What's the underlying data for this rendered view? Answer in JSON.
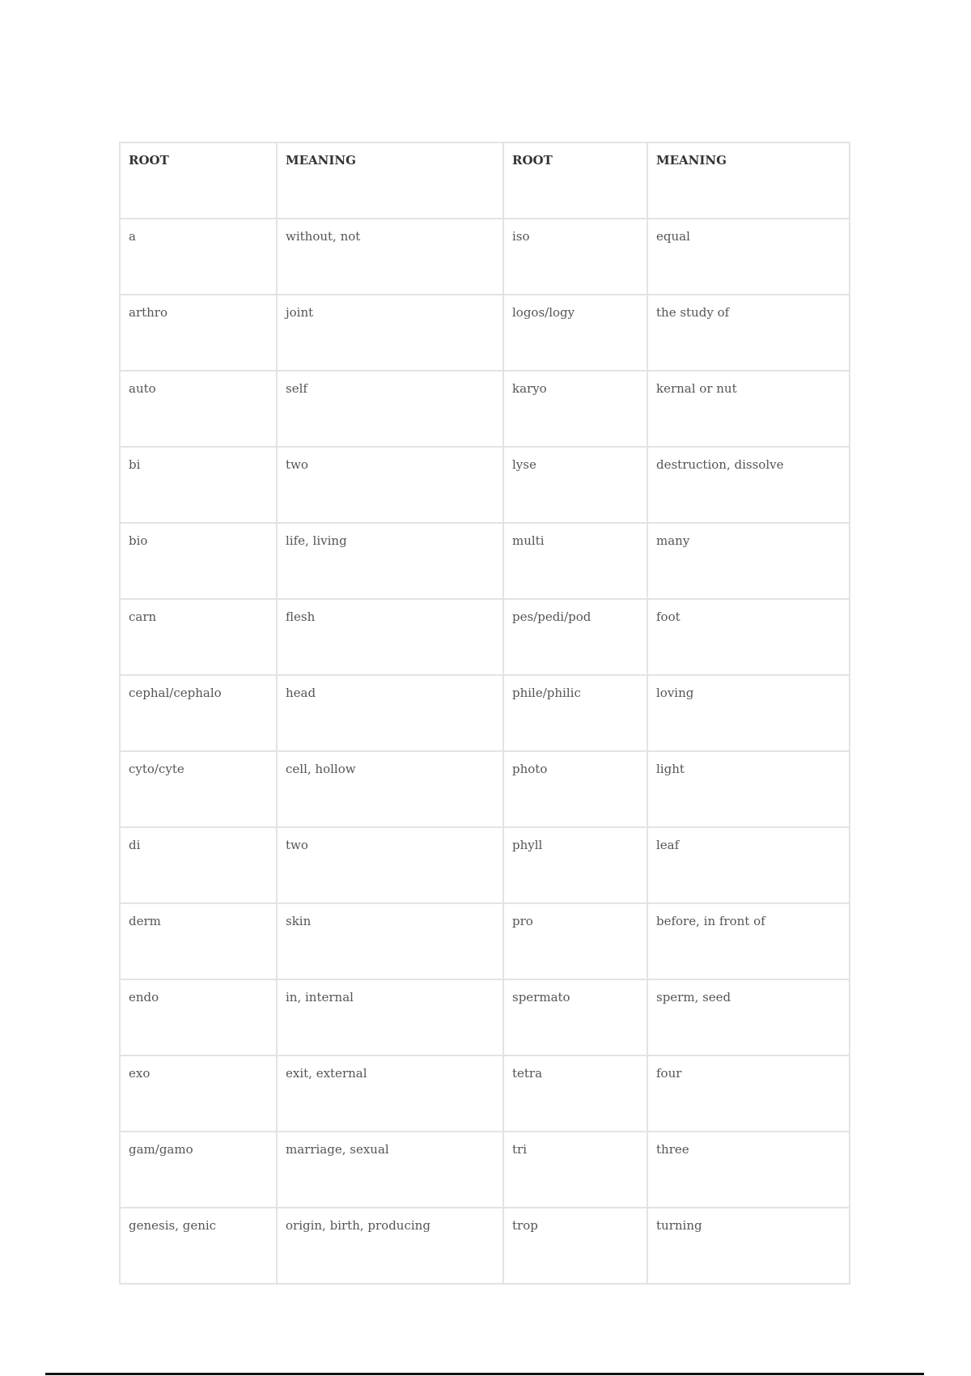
{
  "table": {
    "headers": [
      "ROOT",
      "MEANING",
      "ROOT",
      "MEANING"
    ],
    "rows": [
      [
        "a",
        "without, not",
        "iso",
        "equal"
      ],
      [
        "arthro",
        "joint",
        "logos/logy",
        "the study of"
      ],
      [
        "auto",
        "self",
        "karyo",
        "kernal or nut"
      ],
      [
        "bi",
        "two",
        "lyse",
        "destruction, dissolve"
      ],
      [
        "bio",
        "life, living",
        "multi",
        "many"
      ],
      [
        "carn",
        "flesh",
        "pes/pedi/pod",
        "foot"
      ],
      [
        "cephal/cephalo",
        "head",
        "phile/philic",
        "loving"
      ],
      [
        "cyto/cyte",
        "cell, hollow",
        "photo",
        "light"
      ],
      [
        "di",
        "two",
        "phyll",
        "leaf"
      ],
      [
        "derm",
        "skin",
        "pro",
        "before, in front of"
      ],
      [
        "endo",
        "in, internal",
        "spermato",
        "sperm, seed"
      ],
      [
        "exo",
        "exit, external",
        "tetra",
        "four"
      ],
      [
        "gam/gamo",
        "marriage, sexual",
        "tri",
        "three"
      ],
      [
        "genesis, genic",
        "origin, birth, producing",
        "trop",
        "turning"
      ]
    ]
  }
}
